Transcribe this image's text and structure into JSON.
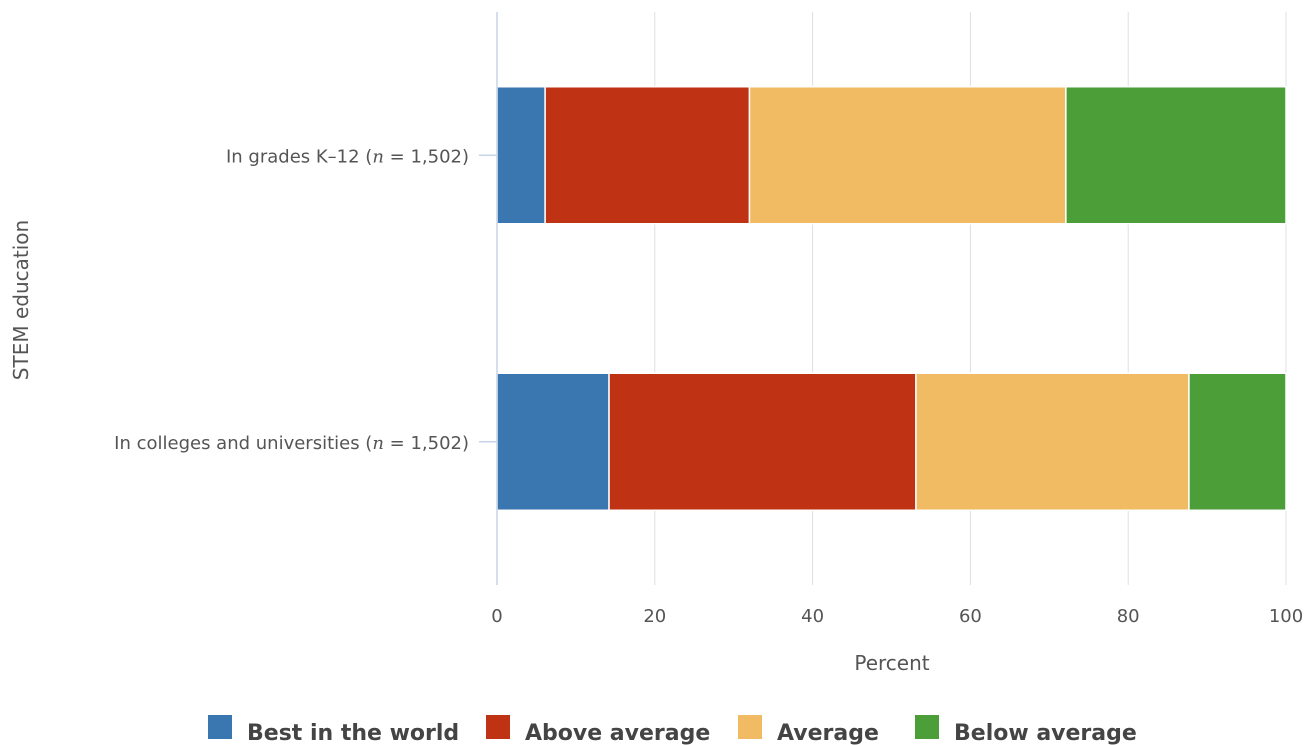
{
  "chart_data": {
    "type": "bar",
    "orientation": "horizontal",
    "stacked": true,
    "categories": [
      {
        "prefix": "In grades K–12 (",
        "n_symbol": "n",
        "suffix": " = 1,502)"
      },
      {
        "prefix": "In colleges and universities (",
        "n_symbol": "n",
        "suffix": " = 1,502)"
      }
    ],
    "series": [
      {
        "name": "Best in the world",
        "color": "#3a76b0",
        "values": [
          6.1,
          14.2
        ]
      },
      {
        "name": "Above average",
        "color": "#bf3214",
        "values": [
          25.9,
          38.9
        ]
      },
      {
        "name": "Average",
        "color": "#f0bb62",
        "values": [
          40.1,
          34.6
        ]
      },
      {
        "name": "Below average",
        "color": "#4b9e38",
        "values": [
          27.9,
          12.3
        ]
      }
    ],
    "xlabel": "Percent",
    "ylabel": "STEM education",
    "xlim": [
      0,
      100
    ],
    "xticks": [
      "0",
      "20",
      "40",
      "60",
      "80",
      "100"
    ],
    "grid": true,
    "legend_position": "bottom"
  }
}
